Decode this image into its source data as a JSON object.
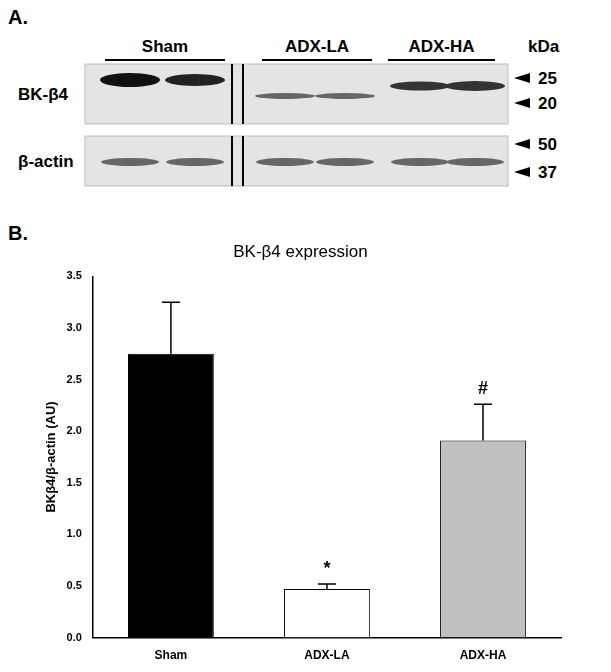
{
  "blot": {
    "panel_label": "A.",
    "groups": [
      "Sham",
      "ADX-LA",
      "ADX-HA"
    ],
    "rows": [
      "BK-β4",
      "β-actin"
    ],
    "marker_unit": "kDa",
    "markers": [
      25,
      20,
      50,
      37
    ]
  },
  "chart_data": {
    "type": "bar",
    "panel_label": "B.",
    "title": "BK-β4 expression",
    "y_label": "BKβ4/β-actin (AU)",
    "categories": [
      "Sham",
      "ADX-LA",
      "ADX-HA"
    ],
    "values": [
      2.75,
      0.47,
      1.91
    ],
    "errors": [
      0.5,
      0.05,
      0.35
    ],
    "colors": [
      "#000000",
      "#ffffff",
      "#c0c0c0"
    ],
    "annotations": [
      {
        "category": "ADX-LA",
        "text": "*"
      },
      {
        "category": "ADX-HA",
        "text": "#"
      }
    ],
    "ylim": [
      0,
      3.5
    ],
    "yticks": [
      {
        "value": 0,
        "label": "0.0"
      },
      0.5,
      {
        "value": 1,
        "label": "1.0"
      },
      1.5,
      {
        "value": 2,
        "label": "2.0"
      },
      2.5,
      {
        "value": 3,
        "label": "3.0"
      },
      3.5
    ],
    "grid": false
  }
}
